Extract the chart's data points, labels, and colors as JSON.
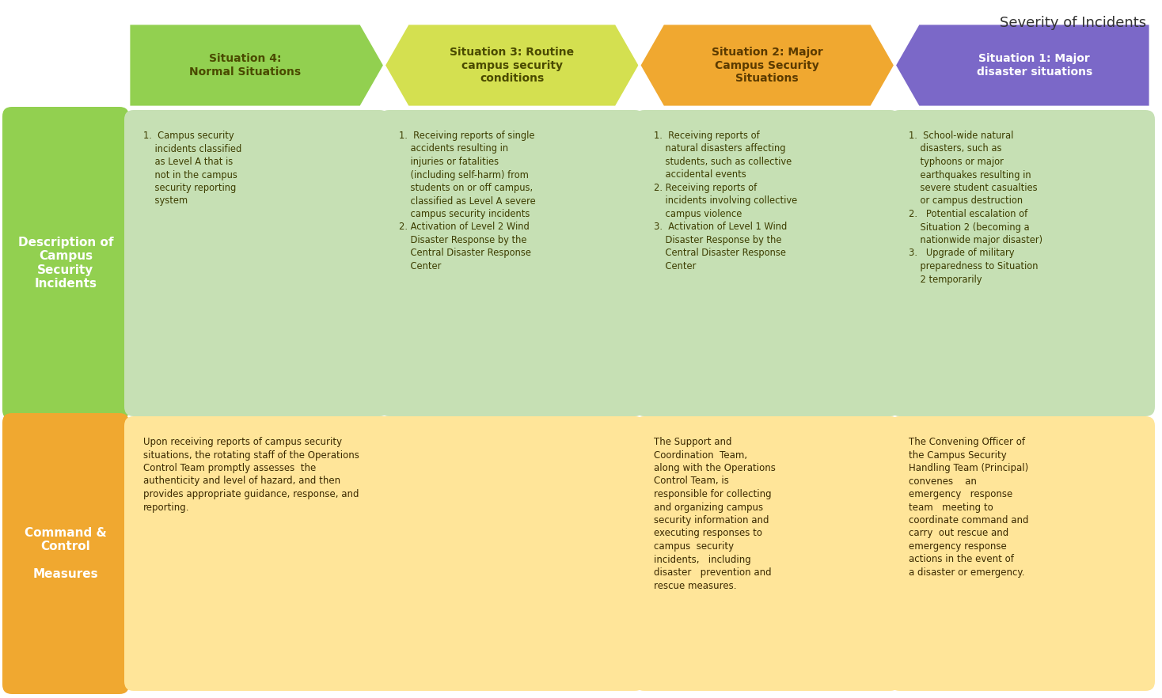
{
  "title": "Severity of Incidents",
  "arrow_labels": [
    "Situation 4:\nNormal Situations",
    "Situation 3: Routine\ncampus security\nconditions",
    "Situation 2: Major\nCampus Security\nSituations",
    "Situation 1: Major\ndisaster situations"
  ],
  "arrow_colors": [
    "#92D050",
    "#D4E050",
    "#F0A830",
    "#7B68C8"
  ],
  "arrow_text_colors": [
    "#4A4A00",
    "#4A4A00",
    "#5A3A00",
    "#FFFFFF"
  ],
  "desc_texts": [
    "1.  Campus security\n    incidents classified\n    as Level A that is\n    not in the campus\n    security reporting\n    system",
    "1.  Receiving reports of single\n    accidents resulting in\n    injuries or fatalities\n    (including self-harm) from\n    students on or off campus,\n    classified as Level A severe\n    campus security incidents\n2. Activation of Level 2 Wind\n    Disaster Response by the\n    Central Disaster Response\n    Center",
    "1.  Receiving reports of\n    natural disasters affecting\n    students, such as collective\n    accidental events\n2. Receiving reports of\n    incidents involving collective\n    campus violence\n3.  Activation of Level 1 Wind\n    Disaster Response by the\n    Central Disaster Response\n    Center",
    "1.  School-wide natural\n    disasters, such as\n    typhoons or major\n    earthquakes resulting in\n    severe student casualties\n    or campus destruction\n2.   Potential escalation of\n    Situation 2 (becoming a\n    nationwide major disaster)\n3.   Upgrade of military\n    preparedness to Situation\n    2 temporarily"
  ],
  "desc_bg": "#C6E0B4",
  "cmd_texts": [
    "Upon receiving reports of campus security\nsituations, the rotating staff of the Operations\nControl Team promptly assesses  the\nauthenticity and level of hazard, and then\nprovides appropriate guidance, response, and\nreporting.",
    "The Support and\nCoordination  Team,\nalong with the Operations\nControl Team, is\nresponsible for collecting\nand organizing campus\nsecurity information and\nexecuting responses to\ncampus  security\nincidents,   including\ndisaster   prevention and\nrescue measures.",
    "The Convening Officer of\nthe Campus Security\nHandling Team (Principal)\nconvenes    an\nemergency   response\nteam   meeting to\ncoordinate command and\ncarry  out rescue and\nemergency response\nactions in the event of\na disaster or emergency."
  ],
  "cmd_bg": "#FFE599",
  "row_label_texts": [
    "Description of\nCampus\nSecurity\nIncidents",
    "Command &\nControl\n\nMeasures"
  ],
  "row_label_bgs": [
    "#92D050",
    "#F0A830"
  ],
  "row_label_text_color": "#FFFFFF",
  "background_color": "#FFFFFF",
  "text_dark": "#3D3D00",
  "cmd_text_color": "#3A2800"
}
